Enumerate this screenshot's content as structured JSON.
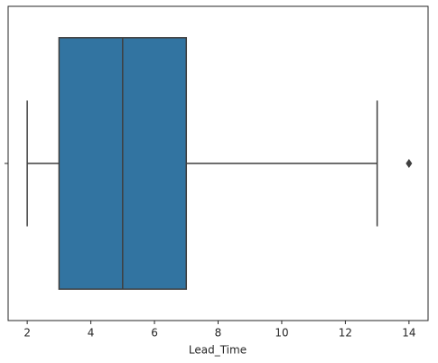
{
  "chart_data": {
    "type": "box",
    "xlabel": "Lead_Time",
    "categories": [
      null
    ],
    "boxes": [
      {
        "whislo": 2,
        "q1": 3,
        "med": 5,
        "q3": 7,
        "whishi": 13,
        "fliers": [
          14
        ]
      }
    ],
    "color": "#3274a1",
    "line_color": "#3f3f3f",
    "xlim": [
      1.4,
      14.6
    ],
    "xticks": [
      2,
      4,
      6,
      8,
      10,
      12,
      14
    ]
  }
}
